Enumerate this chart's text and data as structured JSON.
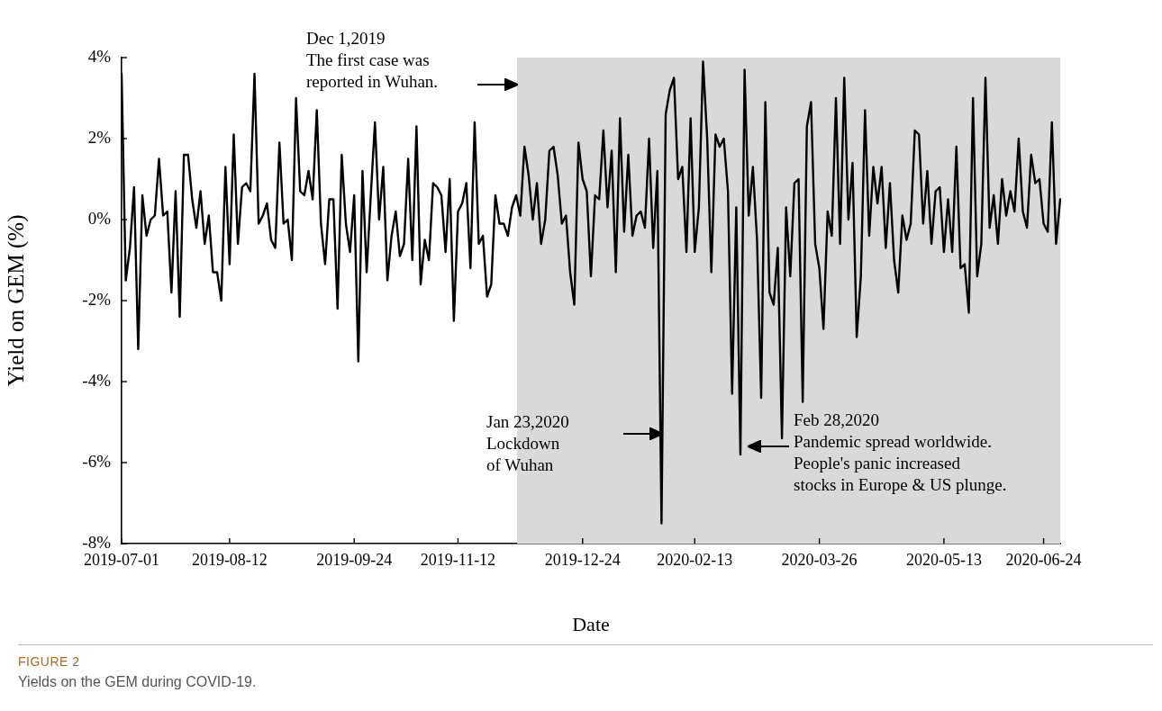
{
  "chart_data": {
    "type": "line",
    "xlabel": "Date",
    "ylabel": "Yield on GEM (%)",
    "ylim": [
      -8,
      4
    ],
    "yticks": [
      {
        "value": -8,
        "label": "-8%"
      },
      {
        "value": -6,
        "label": "-6%"
      },
      {
        "value": -4,
        "label": "-4%"
      },
      {
        "value": -2,
        "label": "-2%"
      },
      {
        "value": 0,
        "label": "0%"
      },
      {
        "value": 2,
        "label": "2%"
      },
      {
        "value": 4,
        "label": "4%"
      }
    ],
    "grid": false,
    "legend": false,
    "marker": "none",
    "line_style": "solid",
    "categories": [
      "2019-07-01",
      null,
      null,
      null,
      null,
      null,
      null,
      null,
      null,
      null,
      null,
      null,
      null,
      null,
      null,
      null,
      null,
      null,
      null,
      null,
      null,
      null,
      null,
      null,
      null,
      null,
      "2019-08-12",
      null,
      null,
      null,
      null,
      null,
      null,
      null,
      null,
      null,
      null,
      null,
      null,
      null,
      null,
      null,
      null,
      null,
      null,
      null,
      null,
      null,
      null,
      null,
      null,
      null,
      null,
      null,
      null,
      null,
      "2019-09-24",
      null,
      null,
      null,
      null,
      null,
      null,
      null,
      null,
      null,
      null,
      null,
      null,
      null,
      null,
      null,
      null,
      null,
      null,
      null,
      null,
      null,
      null,
      null,
      null,
      "2019-11-12",
      null,
      null,
      null,
      null,
      null,
      null,
      null,
      null,
      null,
      null,
      null,
      null,
      null,
      null,
      null,
      null,
      null,
      null,
      null,
      null,
      null,
      null,
      null,
      null,
      null,
      null,
      null,
      null,
      null,
      "2019-12-24",
      null,
      null,
      null,
      null,
      null,
      null,
      null,
      null,
      null,
      null,
      null,
      null,
      null,
      null,
      null,
      null,
      null,
      null,
      null,
      null,
      null,
      null,
      null,
      null,
      null,
      null,
      "2020-02-13",
      null,
      null,
      null,
      null,
      null,
      null,
      null,
      null,
      null,
      null,
      null,
      null,
      null,
      null,
      null,
      null,
      null,
      null,
      null,
      null,
      null,
      null,
      null,
      null,
      null,
      null,
      null,
      null,
      null,
      "2020-03-26",
      null,
      null,
      null,
      null,
      null,
      null,
      null,
      null,
      null,
      null,
      null,
      null,
      null,
      null,
      null,
      null,
      null,
      null,
      null,
      null,
      null,
      null,
      null,
      null,
      null,
      null,
      null,
      null,
      null,
      "2020-05-13",
      null,
      null,
      null,
      null,
      null,
      null,
      null,
      null,
      null,
      null,
      null,
      null,
      null,
      null,
      null,
      null,
      null,
      null,
      null,
      null,
      null,
      null,
      null,
      "2020-06-24",
      null,
      null,
      null,
      null
    ],
    "series": [
      {
        "color": "#000000",
        "values": [
          3.6,
          -1.5,
          -0.7,
          0.8,
          -3.2,
          0.6,
          -0.4,
          0.0,
          0.1,
          1.5,
          0.1,
          0.2,
          -1.8,
          0.7,
          -2.4,
          1.6,
          1.6,
          0.5,
          -0.2,
          0.7,
          -0.6,
          0.1,
          -1.3,
          -1.3,
          -2.0,
          1.3,
          -1.1,
          2.1,
          -0.6,
          0.8,
          0.9,
          0.7,
          3.6,
          -0.1,
          0.1,
          0.4,
          -0.5,
          -0.7,
          1.9,
          -0.1,
          0.0,
          -1.0,
          3.0,
          0.7,
          0.6,
          1.2,
          0.5,
          2.7,
          -0.1,
          -1.1,
          0.5,
          0.5,
          -2.2,
          1.6,
          -0.1,
          -0.8,
          0.6,
          -3.5,
          1.2,
          -1.3,
          0.6,
          2.4,
          0.0,
          1.3,
          -1.5,
          -0.4,
          0.2,
          -0.9,
          -0.6,
          1.5,
          -1.0,
          2.3,
          -1.6,
          -0.5,
          -1.0,
          0.9,
          0.8,
          0.6,
          -0.8,
          1.0,
          -2.5,
          0.2,
          0.4,
          0.9,
          -1.2,
          2.4,
          -0.6,
          -0.4,
          -1.9,
          -1.6,
          0.6,
          -0.1,
          -0.1,
          -0.4,
          0.3,
          0.6,
          0.1,
          1.8,
          1.1,
          0.0,
          0.9,
          -0.6,
          0.0,
          1.7,
          1.8,
          1.1,
          -0.1,
          0.1,
          -1.3,
          -2.1,
          1.9,
          1.0,
          0.7,
          -1.4,
          0.6,
          0.5,
          2.2,
          0.3,
          1.7,
          -1.3,
          2.5,
          -0.3,
          1.6,
          -0.4,
          0.1,
          0.2,
          -0.2,
          2.0,
          -0.7,
          1.2,
          -7.5,
          2.6,
          3.2,
          3.5,
          1.0,
          1.3,
          -0.8,
          2.5,
          -0.8,
          0.3,
          3.9,
          2.0,
          -1.3,
          2.1,
          1.8,
          2.0,
          0.7,
          -4.3,
          0.3,
          -5.8,
          3.7,
          0.1,
          1.3,
          -0.5,
          -4.4,
          2.9,
          -1.8,
          -2.1,
          -0.7,
          -5.4,
          0.3,
          -1.4,
          0.9,
          1.0,
          -4.5,
          2.3,
          2.9,
          -0.6,
          -1.2,
          -2.7,
          0.2,
          -0.4,
          3.0,
          -0.6,
          3.5,
          0.0,
          1.4,
          -2.9,
          -1.4,
          2.7,
          -0.4,
          1.3,
          0.4,
          1.3,
          -0.7,
          0.9,
          -1.0,
          -1.8,
          0.1,
          -0.5,
          -0.1,
          2.2,
          2.1,
          -0.1,
          1.2,
          -0.6,
          0.7,
          0.8,
          -0.8,
          0.5,
          -0.8,
          1.8,
          -1.2,
          -1.1,
          -2.3,
          3.0,
          -1.4,
          -0.6,
          3.5,
          -0.2,
          0.6,
          -0.6,
          1.0,
          0.1,
          0.7,
          0.2,
          2.0,
          0.2,
          -0.2,
          1.6,
          0.9,
          1.0,
          -0.1,
          -0.3,
          2.4,
          -0.6,
          0.5
        ]
      }
    ],
    "annotations": [
      "Dec 1,2019\nThe first case was\nreported in Wuhan.",
      "Jan 23,2020\nLockdown\nof Wuhan",
      "Feb 28,2020\nPandemic spread worldwide.\nPeople's panic increased\nstocks in Europe & US plunge.",
      "FIGURE 2",
      "Yields on the GEM during COVID-19."
    ]
  }
}
